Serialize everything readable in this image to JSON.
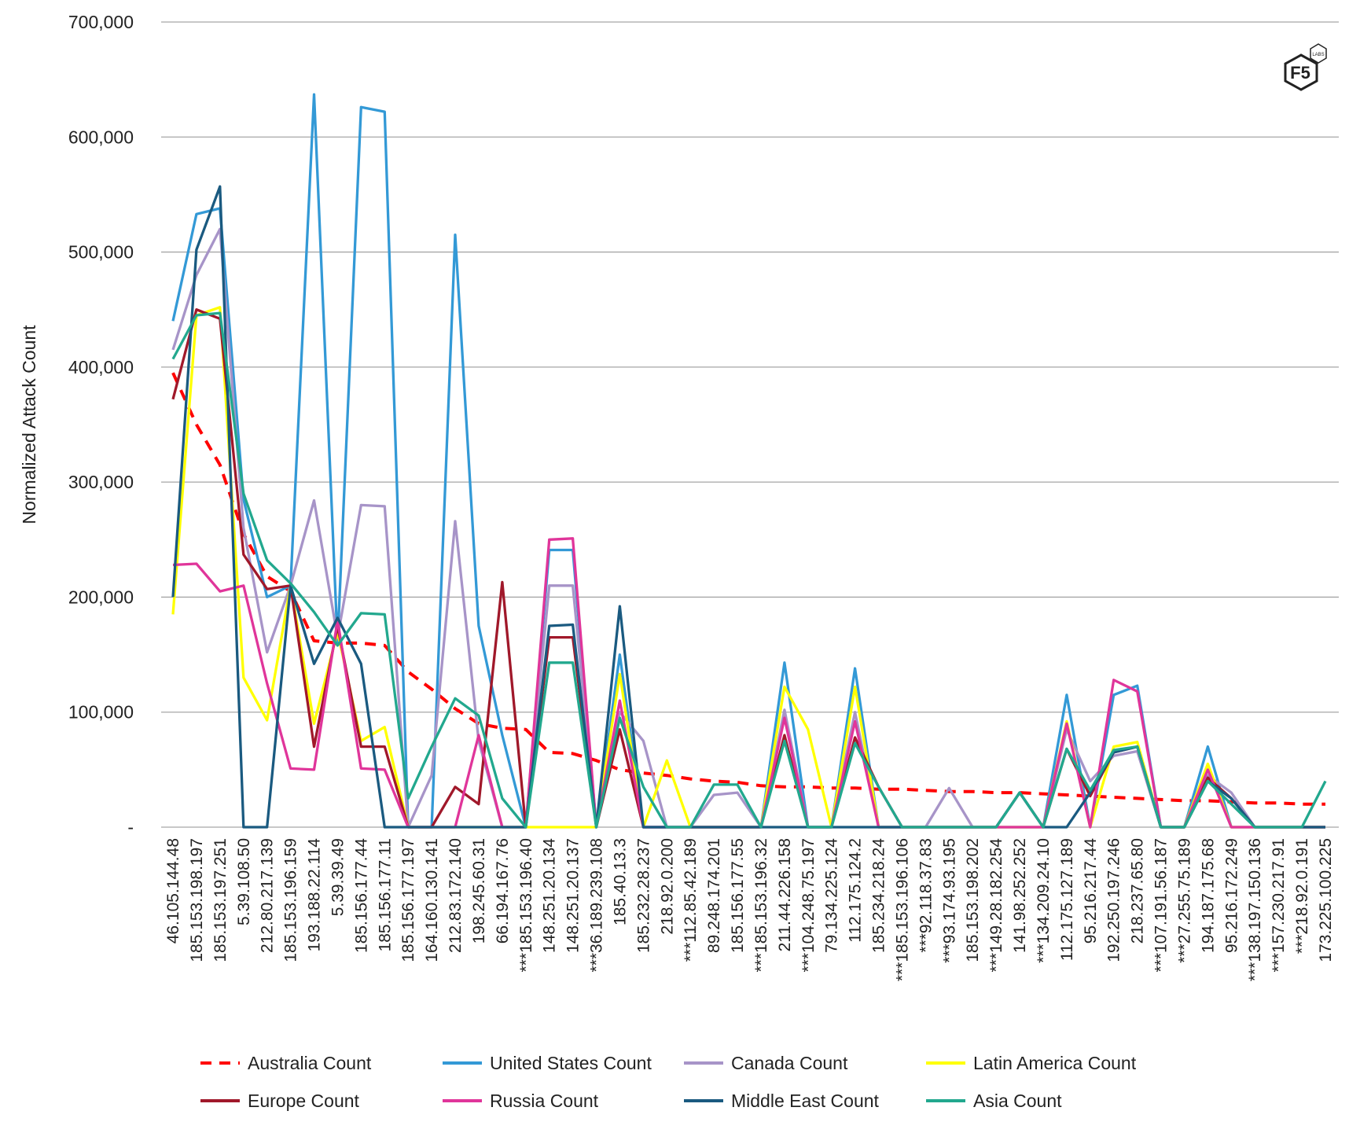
{
  "chart_data": {
    "type": "line",
    "y_label": "Normalized Attack Count",
    "logo": {
      "text": "F5",
      "subtext": "LABS"
    },
    "ylim": [
      0,
      700000
    ],
    "yticks": [
      {
        "value": 0,
        "label": "-"
      },
      {
        "value": 100000,
        "label": "100,000"
      },
      {
        "value": 200000,
        "label": "200,000"
      },
      {
        "value": 300000,
        "label": "300,000"
      },
      {
        "value": 400000,
        "label": "400,000"
      },
      {
        "value": 500000,
        "label": "500,000"
      },
      {
        "value": 600000,
        "label": "600,000"
      },
      {
        "value": 700000,
        "label": "700,000"
      }
    ],
    "grid": true,
    "legend": "bottom",
    "categories": [
      "46.105.144.48",
      "185.153.198.197",
      "185.153.197.251",
      "5.39.108.50",
      "212.80.217.139",
      "185.153.196.159",
      "193.188.22.114",
      "5.39.39.49",
      "185.156.177.44",
      "185.156.177.11",
      "185.156.177.197",
      "164.160.130.141",
      "212.83.172.140",
      "198.245.60.31",
      "66.194.167.76",
      "***185.153.196.40",
      "148.251.20.134",
      "148.251.20.137",
      "***36.189.239.108",
      "185.40.13.3",
      "185.232.28.237",
      "218.92.0.200",
      "***112.85.42.189",
      "89.248.174.201",
      "185.156.177.55",
      "***185.153.196.32",
      "211.44.226.158",
      "***104.248.75.197",
      "79.134.225.124",
      "112.175.124.2",
      "185.234.218.24",
      "***185.153.196.106",
      "***92.118.37.83",
      "***93.174.93.195",
      "185.153.198.202",
      "***149.28.182.254",
      "141.98.252.252",
      "***134.209.24.10",
      "112.175.127.189",
      "95.216.217.44",
      "192.250.197.246",
      "218.237.65.80",
      "***107.191.56.187",
      "***27.255.75.189",
      "194.187.175.68",
      "95.216.172.249",
      "***138.197.150.136",
      "***157.230.217.91",
      "***218.92.0.191",
      "173.225.100.225"
    ],
    "series": [
      {
        "name": "Australia Count",
        "color": "#ff0000",
        "dash": true,
        "values": [
          395000,
          350000,
          315000,
          255000,
          218000,
          205000,
          162000,
          160000,
          160000,
          158000,
          135000,
          120000,
          103000,
          90000,
          86000,
          85000,
          65000,
          64000,
          58000,
          50000,
          47000,
          45000,
          42000,
          40000,
          39000,
          36000,
          35000,
          35000,
          34000,
          34000,
          33000,
          33000,
          32000,
          31000,
          31000,
          30000,
          30000,
          29000,
          28000,
          27000,
          26000,
          25000,
          24000,
          23000,
          23000,
          22000,
          21000,
          21000,
          20000,
          20000
        ]
      },
      {
        "name": "United States Count",
        "color": "#3399d6",
        "dash": false,
        "values": [
          440000,
          533000,
          538000,
          285000,
          200000,
          210000,
          637000,
          160000,
          626000,
          622000,
          0,
          0,
          515000,
          175000,
          80000,
          0,
          241000,
          241000,
          0,
          150000,
          0,
          0,
          0,
          0,
          0,
          0,
          143000,
          0,
          0,
          138000,
          0,
          0,
          0,
          0,
          0,
          0,
          0,
          0,
          115000,
          0,
          115000,
          123000,
          0,
          0,
          70000,
          0,
          0,
          0,
          0,
          0
        ]
      },
      {
        "name": "Canada Count",
        "color": "#a794c8",
        "dash": false,
        "values": [
          415000,
          480000,
          520000,
          260000,
          152000,
          210000,
          284000,
          165000,
          280000,
          279000,
          0,
          45000,
          266000,
          75000,
          0,
          0,
          210000,
          210000,
          0,
          100000,
          75000,
          0,
          0,
          28000,
          30000,
          0,
          102000,
          0,
          0,
          100000,
          0,
          0,
          0,
          34000,
          0,
          0,
          30000,
          0,
          85000,
          40000,
          62000,
          66000,
          0,
          0,
          45000,
          30000,
          0,
          0,
          0,
          0
        ]
      },
      {
        "name": "Latin America Count",
        "color": "#ffff00",
        "dash": false,
        "values": [
          185000,
          445000,
          452000,
          130000,
          93000,
          210000,
          90000,
          170000,
          75000,
          87000,
          0,
          0,
          0,
          0,
          0,
          0,
          0,
          0,
          0,
          133000,
          0,
          58000,
          0,
          0,
          0,
          0,
          122000,
          85000,
          0,
          122000,
          0,
          0,
          0,
          0,
          0,
          0,
          0,
          0,
          92000,
          0,
          70000,
          74000,
          0,
          0,
          55000,
          0,
          0,
          0,
          0,
          0
        ]
      },
      {
        "name": "Europe Count",
        "color": "#a0182a",
        "dash": false,
        "values": [
          372000,
          450000,
          442000,
          237000,
          207000,
          210000,
          70000,
          175000,
          70000,
          70000,
          0,
          0,
          35000,
          20000,
          213000,
          0,
          165000,
          165000,
          0,
          85000,
          0,
          0,
          0,
          0,
          0,
          0,
          80000,
          0,
          0,
          78000,
          35000,
          0,
          0,
          0,
          0,
          0,
          30000,
          0,
          68000,
          27000,
          65000,
          70000,
          0,
          0,
          43000,
          25000,
          0,
          0,
          0,
          0
        ]
      },
      {
        "name": "Russia Count",
        "color": "#e0359a",
        "dash": false,
        "values": [
          228000,
          229000,
          205000,
          210000,
          125000,
          51000,
          50000,
          180000,
          51000,
          50000,
          0,
          0,
          0,
          80000,
          0,
          0,
          250000,
          251000,
          0,
          110000,
          0,
          0,
          0,
          0,
          0,
          0,
          95000,
          0,
          0,
          92000,
          0,
          0,
          0,
          0,
          0,
          0,
          0,
          0,
          90000,
          0,
          128000,
          118000,
          0,
          0,
          50000,
          0,
          0,
          0,
          0,
          0
        ]
      },
      {
        "name": "Middle East Count",
        "color": "#1a5a80",
        "dash": false,
        "values": [
          200000,
          502000,
          557000,
          0,
          0,
          210000,
          142000,
          182000,
          142000,
          0,
          0,
          0,
          0,
          0,
          0,
          0,
          175000,
          176000,
          0,
          192000,
          0,
          0,
          0,
          0,
          0,
          0,
          0,
          0,
          0,
          0,
          0,
          0,
          0,
          0,
          0,
          0,
          30000,
          0,
          0,
          30000,
          65000,
          70000,
          0,
          0,
          40000,
          25000,
          0,
          0,
          0,
          0
        ]
      },
      {
        "name": "Asia Count",
        "color": "#22a88e",
        "dash": false,
        "values": [
          407000,
          445000,
          447000,
          290000,
          232000,
          212000,
          187000,
          158000,
          186000,
          185000,
          25000,
          70000,
          112000,
          97000,
          25000,
          0,
          143000,
          143000,
          0,
          95000,
          35000,
          0,
          0,
          37000,
          37000,
          0,
          75000,
          0,
          0,
          73000,
          35000,
          0,
          0,
          0,
          0,
          0,
          30000,
          0,
          68000,
          32000,
          67000,
          70000,
          0,
          0,
          40000,
          20000,
          0,
          0,
          0,
          40000
        ]
      }
    ]
  }
}
